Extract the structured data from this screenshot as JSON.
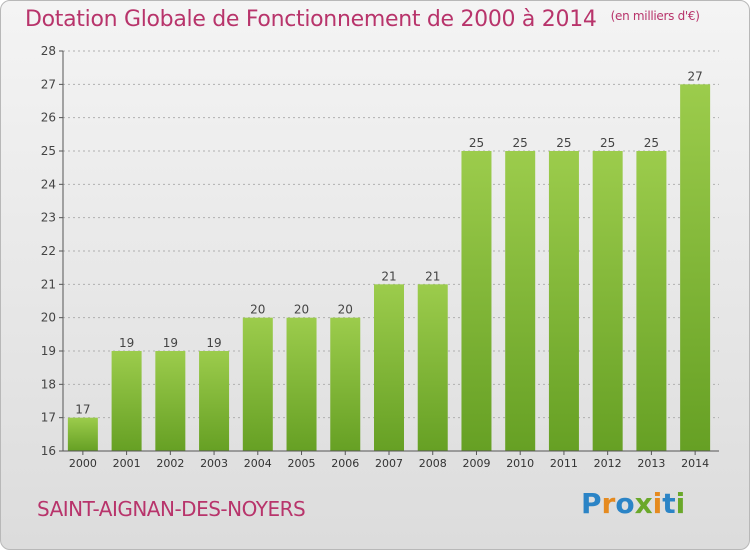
{
  "title": "Dotation Globale de Fonctionnement de 2000 à 2014",
  "unit": "(en milliers d'€)",
  "commune": "SAINT-AIGNAN-DES-NOYERS",
  "logo": {
    "text": "Proxiti",
    "letters": [
      {
        "ch": "P",
        "color": "#2b84c6"
      },
      {
        "ch": "r",
        "color": "#e58a1f"
      },
      {
        "ch": "o",
        "color": "#2b84c6"
      },
      {
        "ch": "x",
        "color": "#6aa82a"
      },
      {
        "ch": "i",
        "color": "#e58a1f"
      },
      {
        "ch": "t",
        "color": "#2b84c6"
      },
      {
        "ch": "i",
        "color": "#6aa82a"
      }
    ]
  },
  "colors": {
    "bar_top": "#9ccc4c",
    "bar_bottom": "#66a024",
    "accent": "#b8346b",
    "grid": "#b0b0b0"
  },
  "chart_data": {
    "type": "bar",
    "categories": [
      "2000",
      "2001",
      "2002",
      "2003",
      "2004",
      "2005",
      "2006",
      "2007",
      "2008",
      "2009",
      "2010",
      "2011",
      "2012",
      "2013",
      "2014"
    ],
    "values": [
      17,
      19,
      19,
      19,
      20,
      20,
      20,
      21,
      21,
      25,
      25,
      25,
      25,
      25,
      27
    ],
    "title": "Dotation Globale de Fonctionnement de 2000 à 2014",
    "xlabel": "",
    "ylabel": "",
    "ylim": [
      16,
      28
    ],
    "yticks": [
      16,
      17,
      18,
      19,
      20,
      21,
      22,
      23,
      24,
      25,
      26,
      27,
      28
    ],
    "grid": true,
    "data_labels": true
  }
}
